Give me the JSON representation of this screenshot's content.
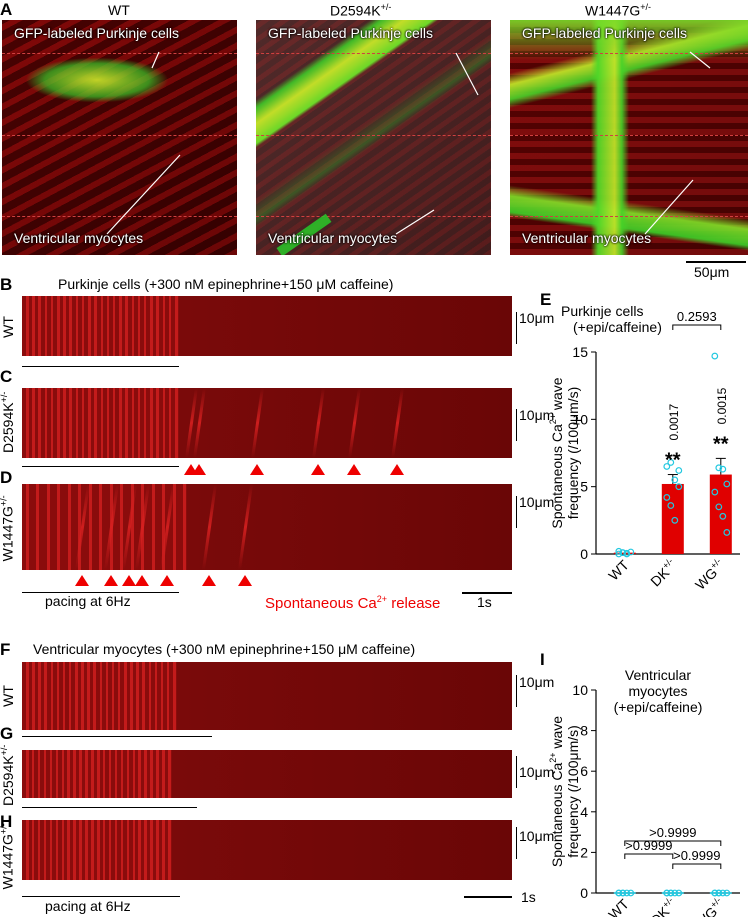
{
  "panel_labels": {
    "A": "A",
    "B": "B",
    "C": "C",
    "D": "D",
    "E": "E",
    "F": "F",
    "G": "G",
    "H": "H",
    "I": "I"
  },
  "panelA": {
    "genotypes": [
      "WT",
      "D2594K",
      "W1447G"
    ],
    "genotype_suffix": "+/-",
    "gfp_label": "GFP-labeled Purkinje cells",
    "myocyte_label": "Ventricular myocytes",
    "scalebar": "50μm"
  },
  "purkinje_title": "Purkinje cells (+300 nM epinephrine+150 μM caffeine)",
  "myocyte_title": "Ventricular myocytes (+300 nM epinephrine+150 μM caffeine)",
  "row_labels": {
    "wt": "WT",
    "dk": "D2594K",
    "wg": "W1447G",
    "suffix": "+/-"
  },
  "scale_10um": "10μm",
  "scale_1s": "1s",
  "pacing_label": "pacing at 6Hz",
  "spontaneous_label_pre": "Spontaneous Ca",
  "spontaneous_label_sup": "2+",
  "spontaneous_label_post": " release",
  "colors": {
    "kymo": "#8a0c0c",
    "stripe": "#d62020",
    "green": "#28d428",
    "arrow": "#e00000",
    "bar": "#e00000",
    "dot": "#22c8e0"
  },
  "chart_data": [
    {
      "type": "bar",
      "title": "Purkinje cells (+epi/caffeine)",
      "ylabel": "Spontaneous Ca2+ wave frequency (/100μm/s)",
      "ylim": [
        0,
        15
      ],
      "yticks": [
        0,
        5,
        10,
        15
      ],
      "categories": [
        "WT",
        "DK+/-",
        "WG+/-"
      ],
      "values": [
        0.1,
        5.2,
        5.9
      ],
      "errors": [
        0.1,
        0.7,
        1.2
      ],
      "points": [
        [
          0,
          0.1,
          0.05,
          0.15,
          0.2,
          0.1,
          0
        ],
        [
          6.5,
          6.8,
          5.5,
          5.0,
          4.2,
          3.6,
          2.5,
          6.2
        ],
        [
          14.7,
          6.4,
          6.3,
          5.2,
          4.6,
          3.5,
          2.8,
          1.6
        ]
      ],
      "p_values_vs_wt": [
        "",
        "0.0017",
        "0.0015"
      ],
      "significance": [
        "",
        "**",
        "**"
      ],
      "pairwise": [
        {
          "between": [
            "DK+/-",
            "WG+/-"
          ],
          "p": "0.2593"
        }
      ]
    },
    {
      "type": "bar",
      "title": "Ventricular myocytes (+epi/caffeine)",
      "ylabel": "Spontaneous Ca2+ wave frequency (/100μm/s)",
      "ylim": [
        0,
        10
      ],
      "yticks": [
        0,
        2,
        4,
        6,
        8,
        10
      ],
      "categories": [
        "WT",
        "DK+/-",
        "WG+/-"
      ],
      "values": [
        0,
        0,
        0
      ],
      "points": [
        [
          0,
          0,
          0,
          0,
          0,
          0
        ],
        [
          0,
          0,
          0,
          0,
          0,
          0
        ],
        [
          0,
          0,
          0,
          0,
          0,
          0
        ]
      ],
      "pairwise": [
        {
          "between": [
            "WT",
            "WG+/-"
          ],
          "p": ">0.9999"
        },
        {
          "between": [
            "DK+/-",
            "WG+/-"
          ],
          "p": ">0.9999"
        },
        {
          "between": [
            "WT",
            "DK+/-"
          ],
          "p": ">0.9999"
        }
      ]
    }
  ],
  "purkinje_sparks": {
    "dk_arrows_s": [
      3.35,
      3.52,
      4.67,
      5.9,
      6.61,
      7.48
    ],
    "wg_arrows_s": [
      1.18,
      1.76,
      2.12,
      2.38,
      2.88,
      3.72,
      4.43
    ]
  }
}
